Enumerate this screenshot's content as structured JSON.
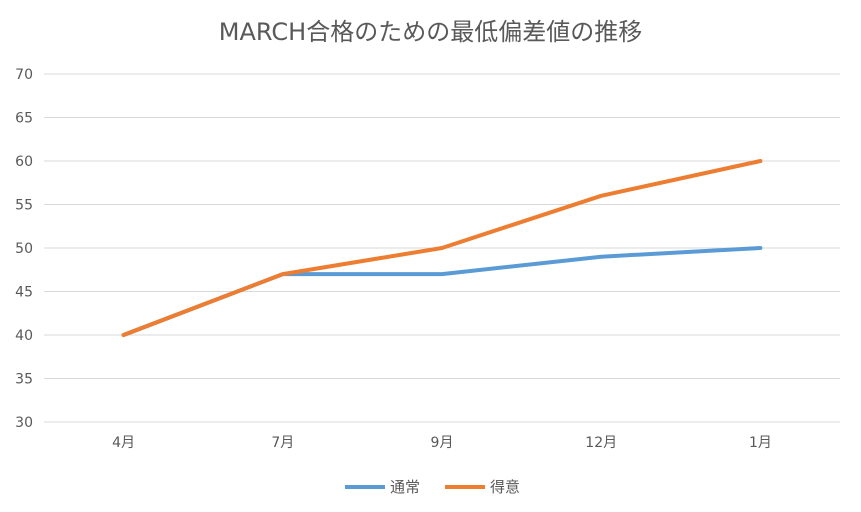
{
  "chart_data": {
    "type": "line",
    "title": "MARCH合格のための最低偏差値の推移",
    "categories": [
      "4月",
      "7月",
      "9月",
      "12月",
      "1月"
    ],
    "series": [
      {
        "name": "通常",
        "values": [
          40,
          47,
          47,
          49,
          50
        ],
        "color": "#5B9BD5"
      },
      {
        "name": "得意",
        "values": [
          40,
          47,
          50,
          56,
          60
        ],
        "color": "#ED7D31"
      }
    ],
    "ylim": [
      30,
      70
    ],
    "yticks": [
      30,
      35,
      40,
      45,
      50,
      55,
      60,
      65,
      70
    ],
    "grid": true,
    "legend": "bottom",
    "xlabel": "",
    "ylabel": ""
  }
}
